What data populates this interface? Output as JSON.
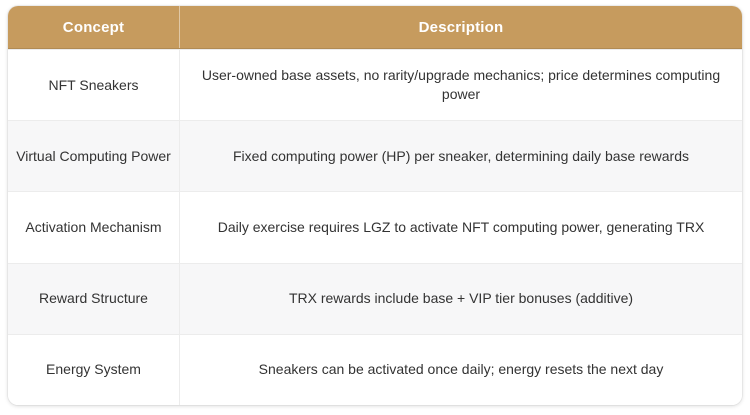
{
  "colors": {
    "header_bg": "#c69b5e",
    "header_text": "#ffffff",
    "row_stripe": "#f7f7f8",
    "body_text": "#333333",
    "border": "#ececec"
  },
  "table": {
    "headers": {
      "concept": "Concept",
      "description": "Description"
    },
    "rows": [
      {
        "concept": "NFT Sneakers",
        "description": "User-owned base assets, no rarity/upgrade mechanics; price determines computing power"
      },
      {
        "concept": "Virtual Computing Power",
        "description": "Fixed computing power (HP) per sneaker, determining daily base rewards"
      },
      {
        "concept": "Activation Mechanism",
        "description": "Daily exercise requires LGZ to activate NFT computing power, generating TRX"
      },
      {
        "concept": "Reward Structure",
        "description": "TRX rewards include base + VIP tier bonuses (additive)"
      },
      {
        "concept": "Energy System",
        "description": "Sneakers can be activated once daily; energy resets the next day"
      }
    ]
  }
}
